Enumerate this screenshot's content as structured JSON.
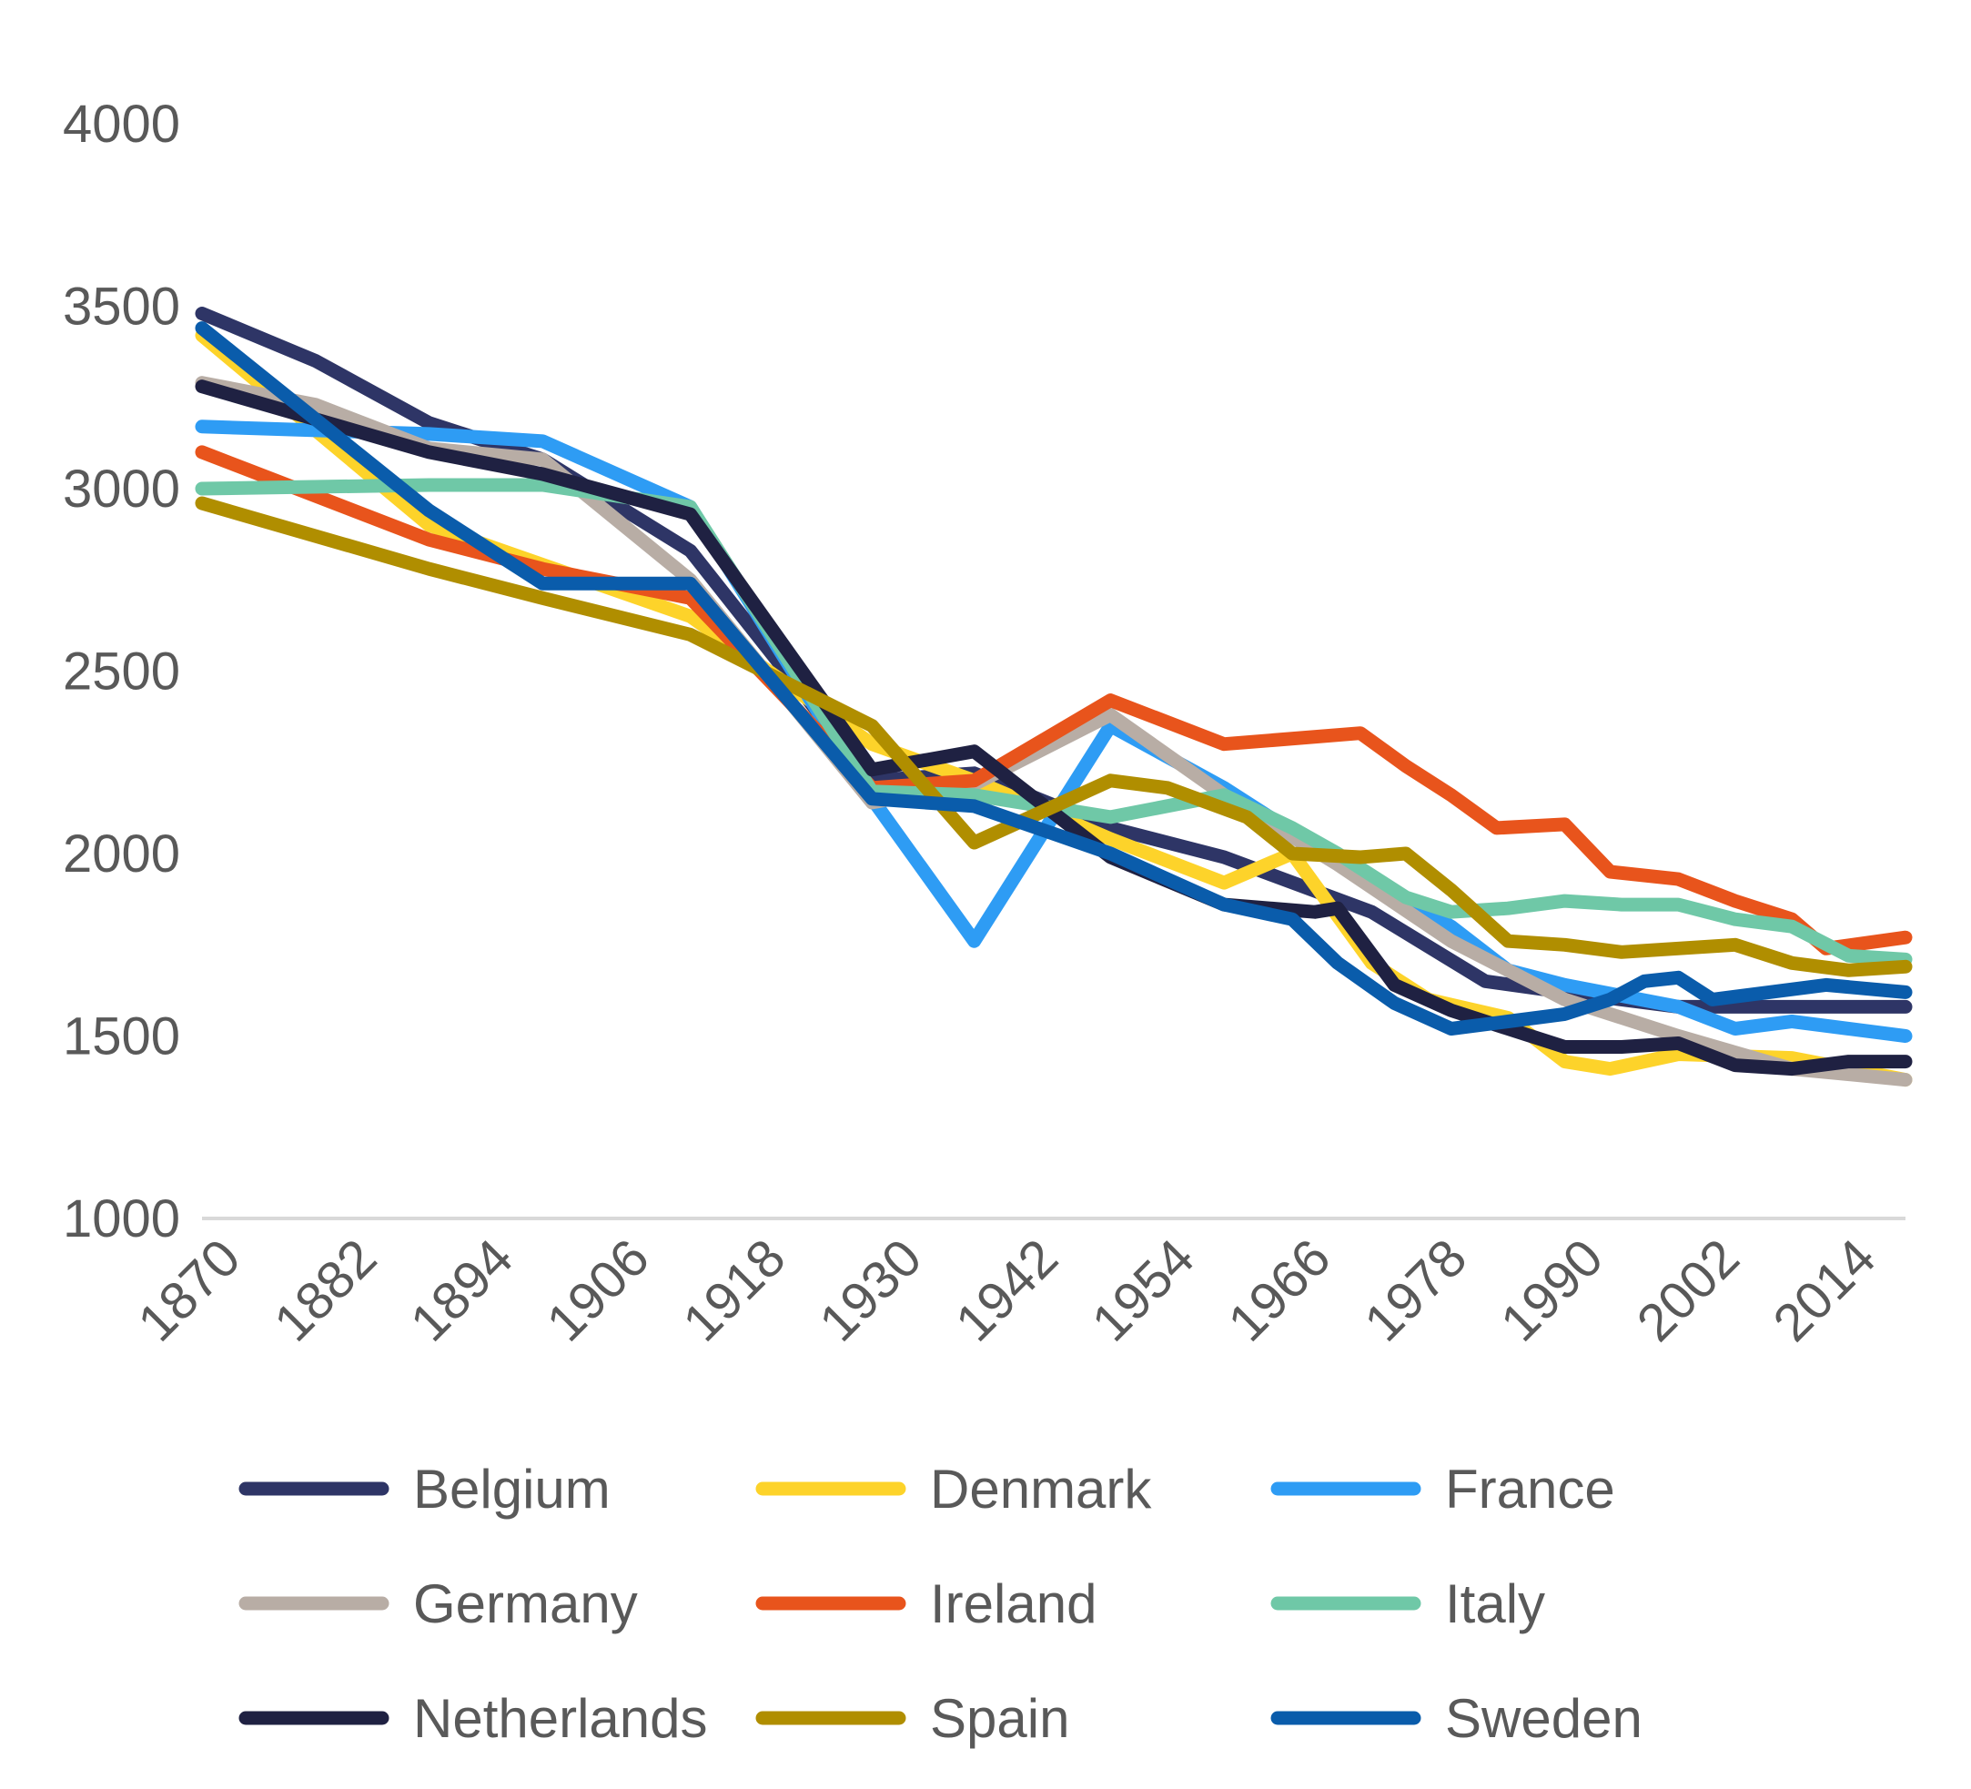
{
  "chart_data": {
    "type": "line",
    "title": "",
    "xlabel": "",
    "ylabel": "",
    "ylim": [
      1000,
      4000
    ],
    "xlim": [
      1870,
      2020
    ],
    "yticks": [
      1000,
      1500,
      2000,
      2500,
      3000,
      3500,
      4000
    ],
    "xticks": [
      1870,
      1882,
      1894,
      1906,
      1918,
      1930,
      1942,
      1954,
      1966,
      1978,
      1990,
      2002,
      2014
    ],
    "grid": false,
    "legend_position": "bottom",
    "series": [
      {
        "name": "Belgium",
        "color": "#2e3566",
        "points": [
          [
            1870,
            3480
          ],
          [
            1880,
            3350
          ],
          [
            1890,
            3180
          ],
          [
            1900,
            3080
          ],
          [
            1913,
            2830
          ],
          [
            1929,
            2200
          ],
          [
            1938,
            2220
          ],
          [
            1950,
            2070
          ],
          [
            1960,
            1990
          ],
          [
            1973,
            1840
          ],
          [
            1983,
            1650
          ],
          [
            1990,
            1620
          ],
          [
            2000,
            1580
          ],
          [
            2010,
            1580
          ],
          [
            2020,
            1580
          ]
        ]
      },
      {
        "name": "Denmark",
        "color": "#fdd32a",
        "points": [
          [
            1870,
            3420
          ],
          [
            1890,
            2900
          ],
          [
            1913,
            2650
          ],
          [
            1929,
            2300
          ],
          [
            1938,
            2200
          ],
          [
            1950,
            2040
          ],
          [
            1960,
            1920
          ],
          [
            1966,
            2000
          ],
          [
            1973,
            1700
          ],
          [
            1978,
            1600
          ],
          [
            1985,
            1550
          ],
          [
            1990,
            1430
          ],
          [
            1994,
            1410
          ],
          [
            2000,
            1450
          ],
          [
            2010,
            1440
          ],
          [
            2020,
            1380
          ]
        ]
      },
      {
        "name": "France",
        "color": "#2e9cf4",
        "points": [
          [
            1870,
            3170
          ],
          [
            1890,
            3150
          ],
          [
            1900,
            3130
          ],
          [
            1913,
            2950
          ],
          [
            1929,
            2150
          ],
          [
            1938,
            1760
          ],
          [
            1950,
            2350
          ],
          [
            1960,
            2180
          ],
          [
            1970,
            1980
          ],
          [
            1980,
            1800
          ],
          [
            1985,
            1680
          ],
          [
            1990,
            1640
          ],
          [
            2000,
            1580
          ],
          [
            2005,
            1520
          ],
          [
            2010,
            1540
          ],
          [
            2015,
            1520
          ],
          [
            2020,
            1500
          ]
        ]
      },
      {
        "name": "Germany",
        "color": "#b8ada5",
        "points": [
          [
            1870,
            3290
          ],
          [
            1880,
            3230
          ],
          [
            1890,
            3110
          ],
          [
            1900,
            3080
          ],
          [
            1913,
            2750
          ],
          [
            1929,
            2140
          ],
          [
            1938,
            2190
          ],
          [
            1950,
            2380
          ],
          [
            1960,
            2160
          ],
          [
            1970,
            1970
          ],
          [
            1980,
            1760
          ],
          [
            1990,
            1600
          ],
          [
            2000,
            1500
          ],
          [
            2010,
            1410
          ],
          [
            2020,
            1380
          ]
        ]
      },
      {
        "name": "Ireland",
        "color": "#e8541c",
        "points": [
          [
            1870,
            3100
          ],
          [
            1890,
            2860
          ],
          [
            1900,
            2780
          ],
          [
            1913,
            2700
          ],
          [
            1929,
            2180
          ],
          [
            1938,
            2200
          ],
          [
            1950,
            2420
          ],
          [
            1960,
            2300
          ],
          [
            1972,
            2330
          ],
          [
            1976,
            2240
          ],
          [
            1980,
            2160
          ],
          [
            1984,
            2070
          ],
          [
            1990,
            2080
          ],
          [
            1994,
            1950
          ],
          [
            2000,
            1930
          ],
          [
            2005,
            1870
          ],
          [
            2010,
            1820
          ],
          [
            2013,
            1740
          ],
          [
            2020,
            1770
          ]
        ]
      },
      {
        "name": "Italy",
        "color": "#6fc8a7",
        "points": [
          [
            1870,
            3000
          ],
          [
            1890,
            3010
          ],
          [
            1900,
            3010
          ],
          [
            1913,
            2950
          ],
          [
            1929,
            2170
          ],
          [
            1938,
            2160
          ],
          [
            1950,
            2100
          ],
          [
            1960,
            2160
          ],
          [
            1966,
            2070
          ],
          [
            1970,
            2000
          ],
          [
            1976,
            1880
          ],
          [
            1980,
            1840
          ],
          [
            1985,
            1850
          ],
          [
            1990,
            1870
          ],
          [
            1995,
            1860
          ],
          [
            2000,
            1860
          ],
          [
            2005,
            1820
          ],
          [
            2010,
            1800
          ],
          [
            2015,
            1720
          ],
          [
            2020,
            1710
          ]
        ]
      },
      {
        "name": "Netherlands",
        "color": "#1f2142",
        "points": [
          [
            1870,
            3280
          ],
          [
            1890,
            3100
          ],
          [
            1900,
            3040
          ],
          [
            1913,
            2930
          ],
          [
            1929,
            2230
          ],
          [
            1938,
            2280
          ],
          [
            1950,
            1990
          ],
          [
            1960,
            1860
          ],
          [
            1968,
            1840
          ],
          [
            1970,
            1850
          ],
          [
            1975,
            1640
          ],
          [
            1980,
            1570
          ],
          [
            1985,
            1520
          ],
          [
            1990,
            1470
          ],
          [
            1995,
            1470
          ],
          [
            2000,
            1480
          ],
          [
            2005,
            1420
          ],
          [
            2010,
            1410
          ],
          [
            2015,
            1430
          ],
          [
            2020,
            1430
          ]
        ]
      },
      {
        "name": "Spain",
        "color": "#b08e00",
        "points": [
          [
            1870,
            2960
          ],
          [
            1890,
            2780
          ],
          [
            1900,
            2700
          ],
          [
            1913,
            2600
          ],
          [
            1929,
            2350
          ],
          [
            1938,
            2030
          ],
          [
            1950,
            2200
          ],
          [
            1955,
            2180
          ],
          [
            1962,
            2100
          ],
          [
            1966,
            2000
          ],
          [
            1972,
            1990
          ],
          [
            1976,
            2000
          ],
          [
            1980,
            1900
          ],
          [
            1985,
            1760
          ],
          [
            1990,
            1750
          ],
          [
            1995,
            1730
          ],
          [
            2000,
            1740
          ],
          [
            2005,
            1750
          ],
          [
            2010,
            1700
          ],
          [
            2015,
            1680
          ],
          [
            2020,
            1690
          ]
        ]
      },
      {
        "name": "Sweden",
        "color": "#0a5cab",
        "points": [
          [
            1870,
            3440
          ],
          [
            1890,
            2940
          ],
          [
            1900,
            2740
          ],
          [
            1913,
            2740
          ],
          [
            1929,
            2150
          ],
          [
            1938,
            2130
          ],
          [
            1950,
            2000
          ],
          [
            1960,
            1860
          ],
          [
            1966,
            1820
          ],
          [
            1970,
            1700
          ],
          [
            1975,
            1590
          ],
          [
            1980,
            1520
          ],
          [
            1985,
            1540
          ],
          [
            1990,
            1560
          ],
          [
            1994,
            1600
          ],
          [
            1997,
            1650
          ],
          [
            2000,
            1660
          ],
          [
            2003,
            1600
          ],
          [
            2008,
            1620
          ],
          [
            2013,
            1640
          ],
          [
            2020,
            1620
          ]
        ]
      }
    ]
  }
}
